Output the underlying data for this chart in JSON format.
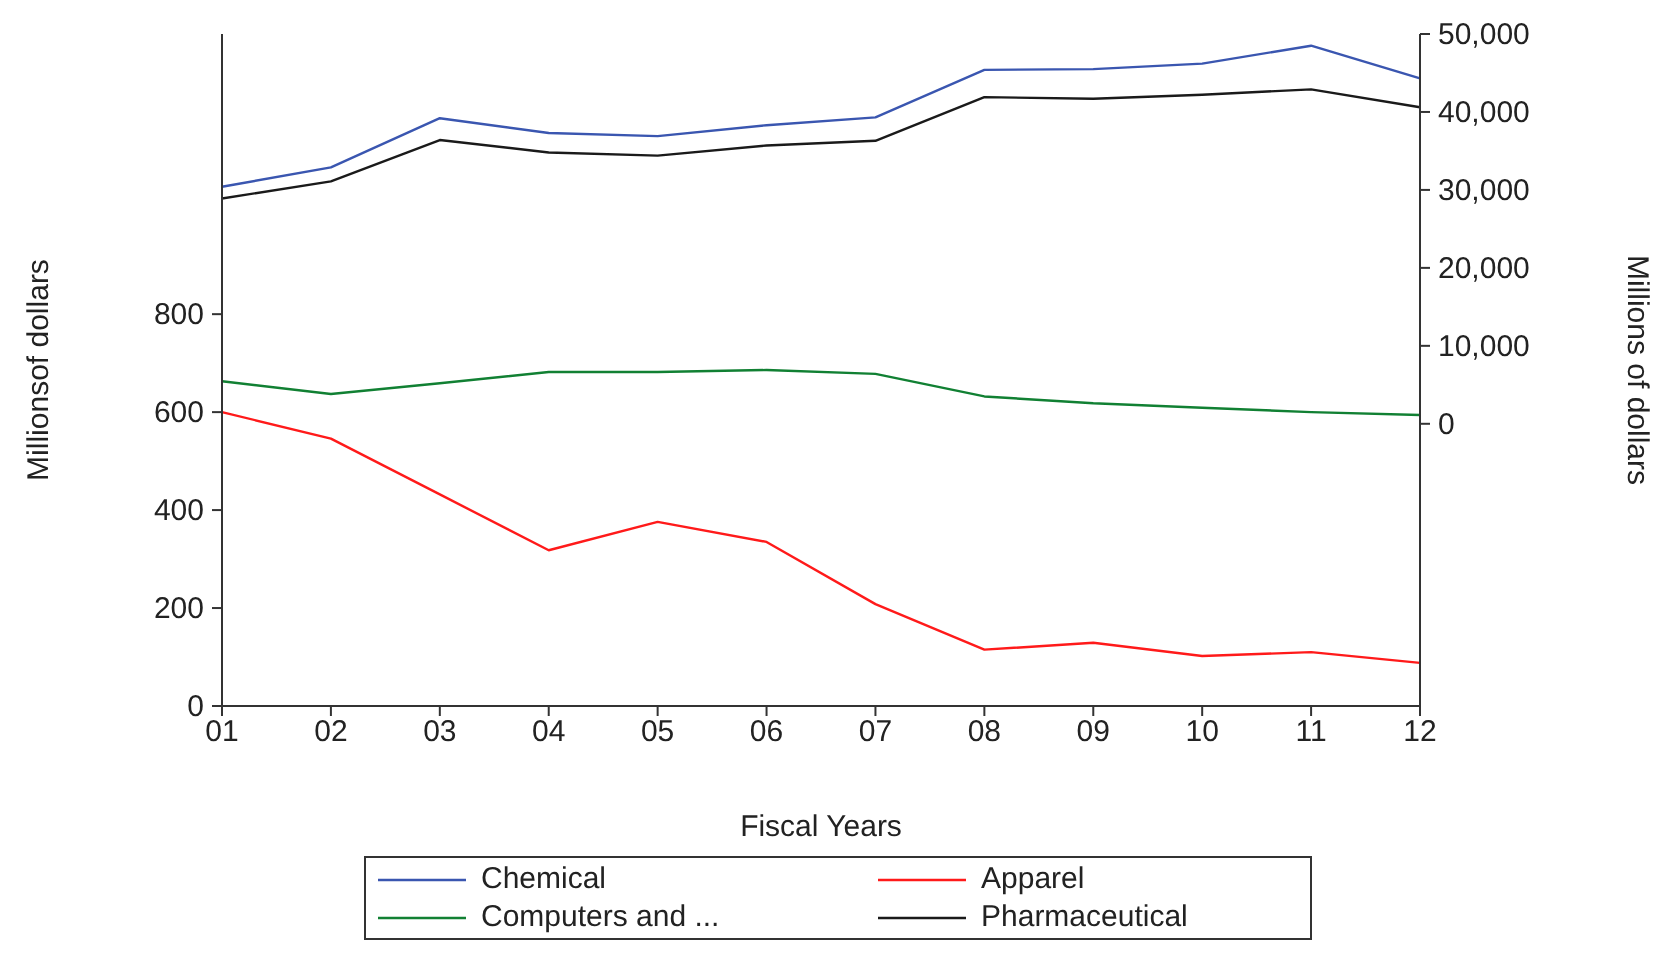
{
  "chart_data": {
    "type": "line",
    "xlabel": "Fiscal Years",
    "ylabel": "Millionsof dollars",
    "y2label": "Millions of dollars",
    "categories": [
      "01",
      "02",
      "03",
      "04",
      "05",
      "06",
      "07",
      "08",
      "09",
      "10",
      "11",
      "12"
    ],
    "series": [
      {
        "name": "Chemical",
        "color": "#3a56b0",
        "axis": "y2",
        "values": [
          30400,
          32900,
          39200,
          37300,
          36900,
          38300,
          39300,
          45400,
          45500,
          46200,
          48500,
          44300
        ]
      },
      {
        "name": "Apparel",
        "color": "#ff1a1a",
        "values": [
          600,
          546,
          432,
          318,
          376,
          335,
          208,
          115,
          129,
          102,
          110,
          88
        ]
      },
      {
        "name": "Computers and ...",
        "color": "#118033",
        "values": [
          663,
          637,
          659,
          682,
          682,
          686,
          678,
          632,
          618,
          609,
          600,
          594
        ]
      },
      {
        "name": "Pharmaceutical",
        "color": "#1a1a1a",
        "axis": "y2",
        "values": [
          28900,
          31100,
          36400,
          34800,
          34400,
          35700,
          36300,
          41900,
          41700,
          42200,
          42900,
          40600
        ]
      }
    ],
    "ylim": [
      0,
      1372
    ],
    "yticks": [
      0,
      200,
      400,
      600,
      800
    ],
    "y2lim": [
      -36200,
      50000
    ],
    "y2ticks": [
      {
        "value": 0,
        "label": "0"
      },
      {
        "value": 10000,
        "label": "10,000"
      },
      {
        "value": 20000,
        "label": "20,000"
      },
      {
        "value": 30000,
        "label": "30,000"
      },
      {
        "value": 40000,
        "label": "40,000"
      },
      {
        "value": 50000,
        "label": "50,000"
      }
    ],
    "grid": false,
    "legend": "bottom",
    "marker": "none",
    "line_style": "solid"
  }
}
